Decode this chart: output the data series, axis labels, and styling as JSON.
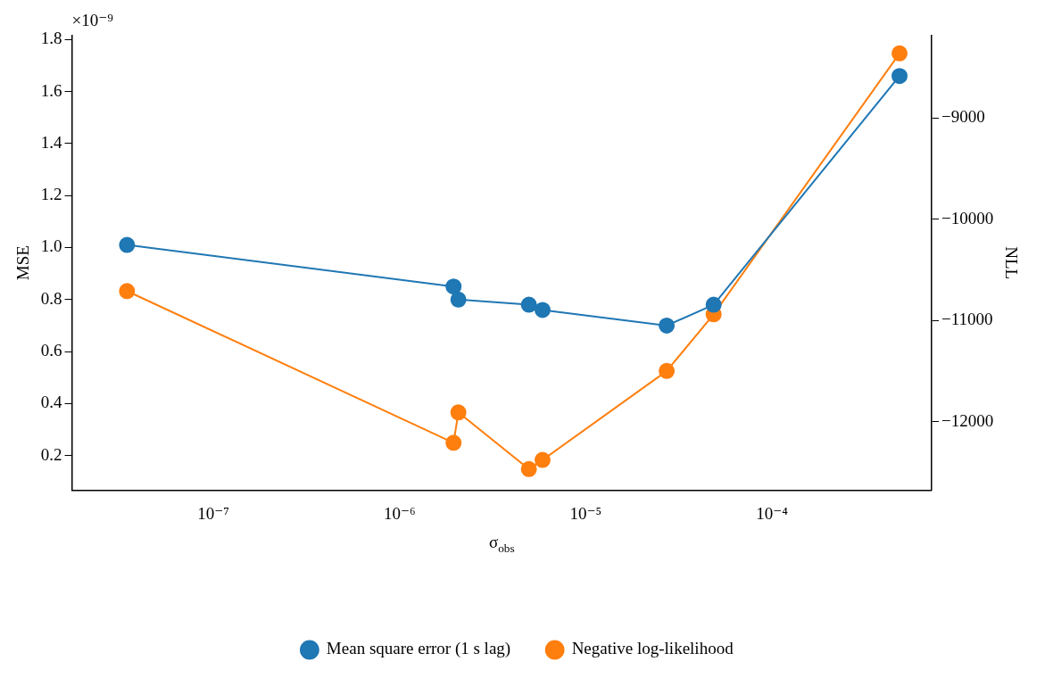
{
  "chart_data": {
    "type": "line",
    "xlabel": "σ$_{obs}$",
    "ylabel": "MSE",
    "y2label": "NLL",
    "annotations": [
      "×10⁻⁹"
    ],
    "x": [
      3.44e-08,
      1.95e-06,
      2.07e-06,
      4.95e-06,
      5.86e-06,
      2.72e-05,
      4.86e-05,
      0.000484
    ],
    "series": [
      {
        "name": "Mean square error (1 s lag)",
        "color": "#1f77b4",
        "values": [
          1.01,
          0.85,
          0.8,
          0.78,
          0.76,
          0.7,
          0.78,
          1.66
        ]
      },
      {
        "name": "Negative log-likelihood",
        "color": "#ff7f0e",
        "axis": "y2",
        "values": [
          -10710,
          -12210,
          -11910,
          -12470,
          -12380,
          -11500,
          -10940,
          -8360
        ]
      }
    ],
    "log": "x",
    "xlim": [
      1.74e-08,
      0.00072
    ],
    "xticks": [
      {
        "value": 1e-07,
        "label": "10⁻⁷"
      },
      {
        "value": 1e-06,
        "label": "10⁻⁶"
      },
      {
        "value": 1e-05,
        "label": "10⁻⁵"
      },
      {
        "value": 0.0001,
        "label": "10⁻⁴"
      }
    ],
    "ylim": [
      0.067,
      1.815
    ],
    "yticks": [
      {
        "value": 0.2,
        "label": "0.2"
      },
      {
        "value": 0.4,
        "label": "0.4"
      },
      {
        "value": 0.6,
        "label": "0.6"
      },
      {
        "value": 0.8,
        "label": "0.8"
      },
      {
        "value": 1,
        "label": "1.0"
      },
      {
        "value": 1.2,
        "label": "1.2"
      },
      {
        "value": 1.4,
        "label": "1.4"
      },
      {
        "value": 1.6,
        "label": "1.6"
      },
      {
        "value": 1.8,
        "label": "1.8"
      }
    ],
    "y2lim": [
      -12678,
      -8185
    ],
    "y2ticks": [
      {
        "value": -12000,
        "label": "−12000"
      },
      {
        "value": -11000,
        "label": "−11000"
      },
      {
        "value": -10000,
        "label": "−10000"
      },
      {
        "value": -9000,
        "label": "−9000"
      }
    ],
    "grid": false,
    "legend": "bottom",
    "marker": "circle",
    "line_style": "solid"
  }
}
